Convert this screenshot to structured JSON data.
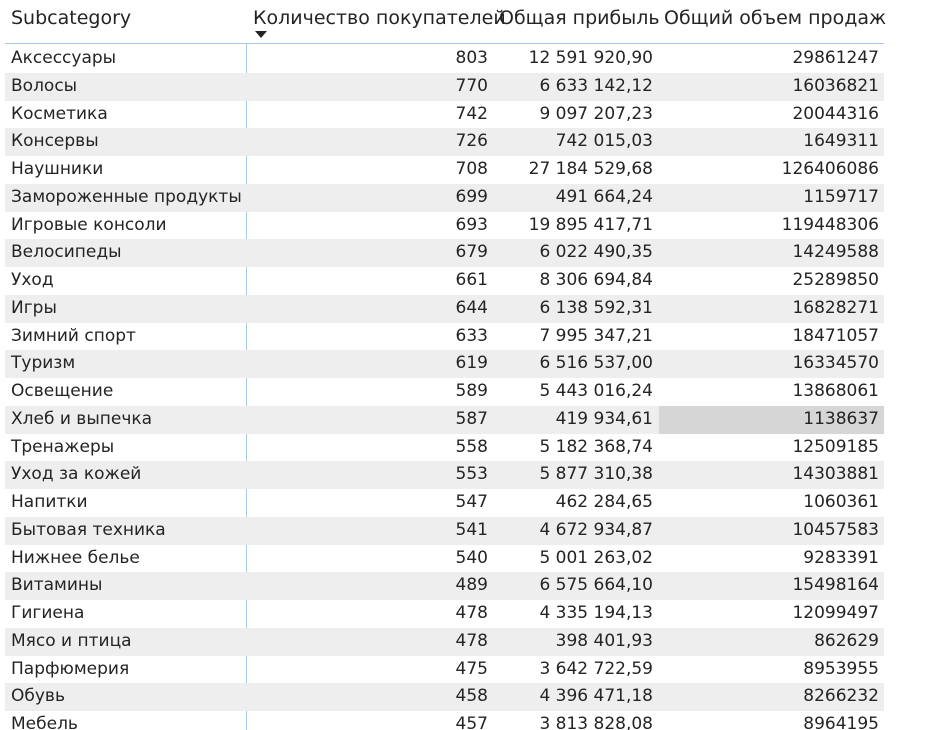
{
  "table": {
    "headers": {
      "subcategory": "Subcategory",
      "buyers": "Количество покупателей",
      "profit": "Общая прибыль",
      "sales": "Общий объем продаж"
    },
    "sort": {
      "column": "buyers",
      "direction": "descending"
    },
    "rows": [
      {
        "subcategory": "Аксессуары",
        "buyers": "803",
        "profit": "12 591 920,90",
        "sales": "29861247"
      },
      {
        "subcategory": "Волосы",
        "buyers": "770",
        "profit": "6 633 142,12",
        "sales": "16036821"
      },
      {
        "subcategory": "Косметика",
        "buyers": "742",
        "profit": "9 097 207,23",
        "sales": "20044316"
      },
      {
        "subcategory": "Консервы",
        "buyers": "726",
        "profit": "742 015,03",
        "sales": "1649311"
      },
      {
        "subcategory": "Наушники",
        "buyers": "708",
        "profit": "27 184 529,68",
        "sales": "126406086"
      },
      {
        "subcategory": "Замороженные продукты",
        "buyers": "699",
        "profit": "491 664,24",
        "sales": "1159717"
      },
      {
        "subcategory": "Игровые консоли",
        "buyers": "693",
        "profit": "19 895 417,71",
        "sales": "119448306"
      },
      {
        "subcategory": "Велосипеды",
        "buyers": "679",
        "profit": "6 022 490,35",
        "sales": "14249588"
      },
      {
        "subcategory": "Уход",
        "buyers": "661",
        "profit": "8 306 694,84",
        "sales": "25289850"
      },
      {
        "subcategory": "Игры",
        "buyers": "644",
        "profit": "6 138 592,31",
        "sales": "16828271"
      },
      {
        "subcategory": "Зимний спорт",
        "buyers": "633",
        "profit": "7 995 347,21",
        "sales": "18471057"
      },
      {
        "subcategory": "Туризм",
        "buyers": "619",
        "profit": "6 516 537,00",
        "sales": "16334570"
      },
      {
        "subcategory": "Освещение",
        "buyers": "589",
        "profit": "5 443 016,24",
        "sales": "13868061"
      },
      {
        "subcategory": "Хлеб и выпечка",
        "buyers": "587",
        "profit": "419 934,61",
        "sales": "1138637"
      },
      {
        "subcategory": "Тренажеры",
        "buyers": "558",
        "profit": "5 182 368,74",
        "sales": "12509185"
      },
      {
        "subcategory": "Уход за кожей",
        "buyers": "553",
        "profit": "5 877 310,38",
        "sales": "14303881"
      },
      {
        "subcategory": "Напитки",
        "buyers": "547",
        "profit": "462 284,65",
        "sales": "1060361"
      },
      {
        "subcategory": "Бытовая техника",
        "buyers": "541",
        "profit": "4 672 934,87",
        "sales": "10457583"
      },
      {
        "subcategory": "Нижнее белье",
        "buyers": "540",
        "profit": "5 001 263,02",
        "sales": "9283391"
      },
      {
        "subcategory": "Витамины",
        "buyers": "489",
        "profit": "6 575 664,10",
        "sales": "15498164"
      },
      {
        "subcategory": "Гигиена",
        "buyers": "478",
        "profit": "4 335 194,13",
        "sales": "12099497"
      },
      {
        "subcategory": "Мясо и птица",
        "buyers": "478",
        "profit": "398 401,93",
        "sales": "862629"
      },
      {
        "subcategory": "Парфюмерия",
        "buyers": "475",
        "profit": "3 642 722,59",
        "sales": "8953955"
      },
      {
        "subcategory": "Обувь",
        "buyers": "458",
        "profit": "4 396 471,18",
        "sales": "8266232"
      },
      {
        "subcategory": "Мебель",
        "buyers": "457",
        "profit": "3 813 828,08",
        "sales": "8964195"
      }
    ],
    "highlighted_cell": {
      "row": 13,
      "column": "sales"
    }
  },
  "colors": {
    "header_divider": "#a7c7e7",
    "row_stripe": "#eeeeee",
    "highlight": "#d6d6d6",
    "text": "#252423"
  }
}
